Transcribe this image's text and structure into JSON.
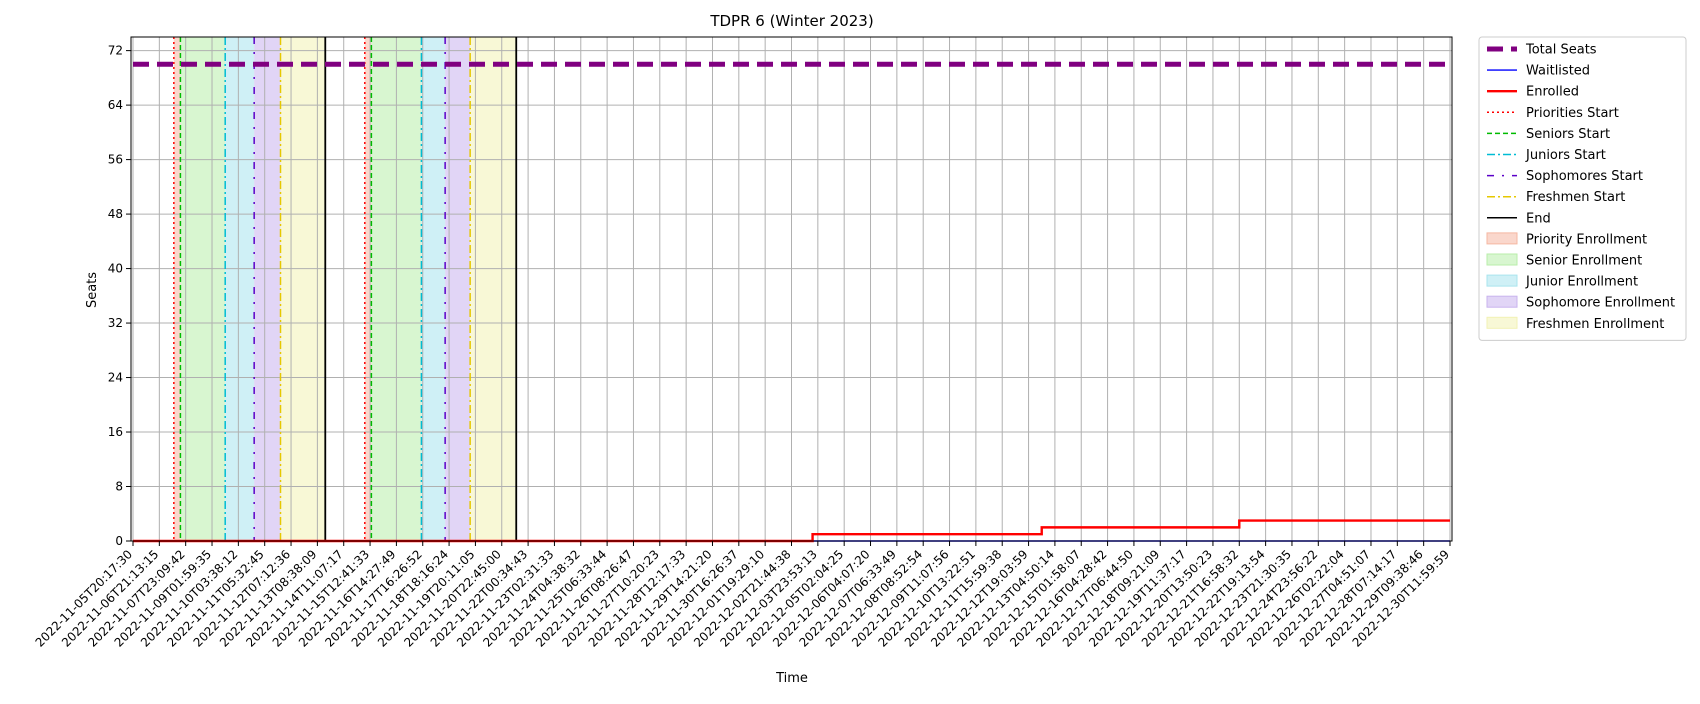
{
  "chart_data": {
    "type": "line",
    "title": "TDPR 6 (Winter 2023)",
    "xlabel": "Time",
    "ylabel": "Seats",
    "ylim": [
      0,
      74
    ],
    "yticks": [
      0,
      8,
      16,
      24,
      32,
      40,
      48,
      56,
      64,
      72
    ],
    "xlim": [
      "2022-11-05T20:17:30",
      "2022-12-30T11:59:59"
    ],
    "xtick_labels": [
      "2022-11-05T20:17:30",
      "2022-11-06T21:13:15",
      "2022-11-07T23:09:42",
      "2022-11-09T01:59:35",
      "2022-11-10T03:38:12",
      "2022-11-11T05:32:45",
      "2022-11-12T07:12:36",
      "2022-11-13T08:38:09",
      "2022-11-14T11:07:17",
      "2022-11-15T12:41:33",
      "2022-11-16T14:27:49",
      "2022-11-17T16:26:52",
      "2022-11-18T18:16:24",
      "2022-11-19T20:11:05",
      "2022-11-20T22:45:00",
      "2022-11-22T00:34:43",
      "2022-11-23T02:31:33",
      "2022-11-24T04:38:32",
      "2022-11-25T06:33:44",
      "2022-11-26T08:26:47",
      "2022-11-27T10:20:23",
      "2022-11-28T12:17:33",
      "2022-11-29T14:21:20",
      "2022-11-30T16:26:37",
      "2022-12-01T19:29:10",
      "2022-12-02T21:44:38",
      "2022-12-03T23:53:13",
      "2022-12-05T02:04:25",
      "2022-12-06T04:07:20",
      "2022-12-07T06:33:49",
      "2022-12-08T08:52:54",
      "2022-12-09T11:07:56",
      "2022-12-10T13:22:51",
      "2022-12-11T15:59:38",
      "2022-12-12T19:03:59",
      "2022-12-13T04:50:14",
      "2022-12-15T01:58:07",
      "2022-12-16T04:28:42",
      "2022-12-17T06:44:50",
      "2022-12-18T09:21:09",
      "2022-12-19T11:37:17",
      "2022-12-20T13:50:23",
      "2022-12-21T16:58:32",
      "2022-12-22T19:13:54",
      "2022-12-23T21:30:35",
      "2022-12-24T23:56:22",
      "2022-12-26T02:22:04",
      "2022-12-27T04:51:07",
      "2022-12-28T07:14:17",
      "2022-12-29T09:38:46",
      "2022-12-30T11:59:59"
    ],
    "grid": true,
    "legend_position": "outside-right",
    "series": [
      {
        "name": "Total Seats",
        "color": "#800080",
        "style": "dashed-thick",
        "x": [
          0,
          50
        ],
        "y": [
          70,
          70
        ]
      },
      {
        "name": "Waitlisted",
        "color": "#0000ff",
        "style": "solid",
        "x": [
          0,
          50
        ],
        "y": [
          0,
          0
        ]
      },
      {
        "name": "Enrolled",
        "color": "#ff0000",
        "style": "solid-step",
        "x": [
          0,
          25.8,
          25.8,
          34.5,
          34.5,
          42,
          42,
          50
        ],
        "y": [
          0,
          0,
          1,
          1,
          2,
          2,
          3,
          3
        ]
      }
    ],
    "markers": [
      {
        "name": "Priorities Start",
        "color": "#ff0000",
        "style": "dotted",
        "x": [
          1.55,
          8.8
        ]
      },
      {
        "name": "Seniors Start",
        "color": "#00bb00",
        "style": "dashed",
        "x": [
          1.8,
          9.05
        ]
      },
      {
        "name": "Juniors Start",
        "color": "#00bcd4",
        "style": "dashdot",
        "x": [
          3.5,
          10.95
        ]
      },
      {
        "name": "Sophomores Start",
        "color": "#5b00c8",
        "style": "loose-dashdot",
        "x": [
          4.6,
          11.85
        ]
      },
      {
        "name": "Freshmen Start",
        "color": "#e6c800",
        "style": "dashdot",
        "x": [
          5.6,
          12.8
        ]
      },
      {
        "name": "End",
        "color": "#000000",
        "style": "solid",
        "x": [
          7.3,
          14.55
        ]
      }
    ],
    "spans": [
      {
        "name": "Priority Enrollment",
        "color": "#f5b7a2",
        "ranges": [
          [
            1.55,
            1.8
          ],
          [
            8.8,
            9.05
          ]
        ]
      },
      {
        "name": "Senior Enrollment",
        "color": "#b8eeaa",
        "ranges": [
          [
            1.8,
            3.5
          ],
          [
            9.05,
            10.95
          ]
        ]
      },
      {
        "name": "Junior Enrollment",
        "color": "#a8e4ee",
        "ranges": [
          [
            3.5,
            4.6
          ],
          [
            10.95,
            11.85
          ]
        ]
      },
      {
        "name": "Sophomore Enrollment",
        "color": "#c9b3ee",
        "ranges": [
          [
            4.6,
            5.6
          ],
          [
            11.85,
            12.8
          ]
        ]
      },
      {
        "name": "Freshmen Enrollment",
        "color": "#f2f2b4",
        "ranges": [
          [
            5.6,
            7.3
          ],
          [
            12.8,
            14.55
          ]
        ]
      }
    ]
  }
}
